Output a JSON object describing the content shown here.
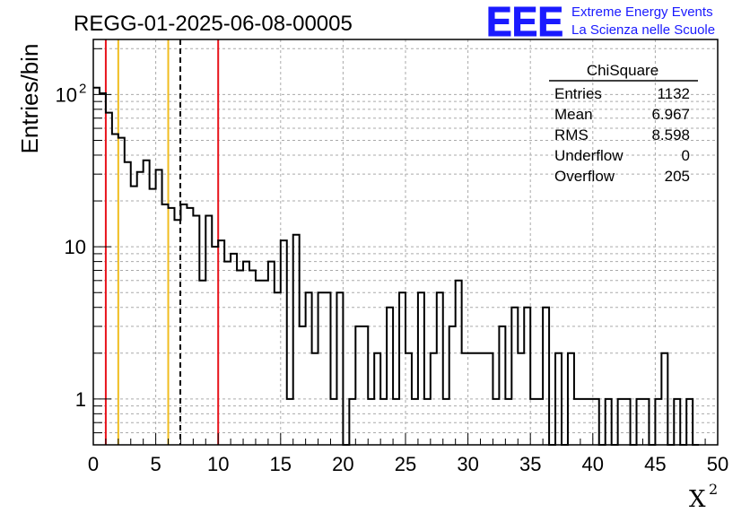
{
  "chart_data": {
    "type": "histogram",
    "title": "REGG-01-2025-06-08-00005",
    "xlabel": "X",
    "xlabel_superscript": "2",
    "ylabel": "Entries/bin",
    "xlim": [
      0,
      50
    ],
    "ylim": [
      0.5,
      230
    ],
    "ylog": true,
    "grid": true,
    "bin_width": 0.5,
    "x_tick_labels": [
      "0",
      "5",
      "10",
      "15",
      "20",
      "25",
      "30",
      "35",
      "40",
      "45",
      "50"
    ],
    "y_tick_labels": [
      {
        "value": 1,
        "base": "1",
        "exp": ""
      },
      {
        "value": 10,
        "base": "10",
        "exp": ""
      },
      {
        "value": 100,
        "base": "10",
        "exp": "2"
      }
    ],
    "values": [
      111,
      102,
      76,
      55,
      52,
      36,
      25,
      31,
      37,
      24,
      32,
      19,
      18,
      15,
      19,
      18,
      16,
      6,
      16,
      10,
      11,
      8,
      9,
      7,
      8,
      7,
      6,
      6,
      8,
      5,
      11,
      1,
      12,
      3,
      5,
      2,
      5,
      5,
      1,
      5,
      0,
      1,
      3,
      3,
      1,
      2,
      1,
      4,
      1,
      5,
      2,
      1,
      5,
      1,
      2,
      5,
      1,
      3,
      6,
      2,
      2,
      2,
      2,
      2,
      1,
      3,
      1,
      4,
      2,
      4,
      1,
      1,
      4,
      0,
      2,
      0,
      2,
      1,
      1,
      1,
      1,
      0,
      1,
      0,
      1,
      1,
      0,
      1,
      1,
      0,
      1,
      2,
      0,
      1,
      0,
      1,
      0
    ],
    "vertical_lines": [
      {
        "x": 1,
        "color": "#e8141c",
        "style": "solid"
      },
      {
        "x": 2,
        "color": "#f0bd20",
        "style": "solid"
      },
      {
        "x": 6,
        "color": "#f0bd20",
        "style": "solid"
      },
      {
        "x": 6.967,
        "color": "#000000",
        "style": "dashed"
      },
      {
        "x": 10,
        "color": "#e8141c",
        "style": "solid"
      }
    ],
    "stats": {
      "title": "ChiSquare",
      "rows": [
        {
          "label": "Entries",
          "value": "1132"
        },
        {
          "label": "Mean",
          "value": "6.967"
        },
        {
          "label": "RMS",
          "value": "8.598"
        },
        {
          "label": "Underflow",
          "value": "0"
        },
        {
          "label": "Overflow",
          "value": "205"
        }
      ]
    },
    "logo": {
      "text": "EEE",
      "line1": "Extreme Energy Events",
      "line2": "La Scienza nelle Scuole",
      "color": "#1a1aff"
    }
  }
}
